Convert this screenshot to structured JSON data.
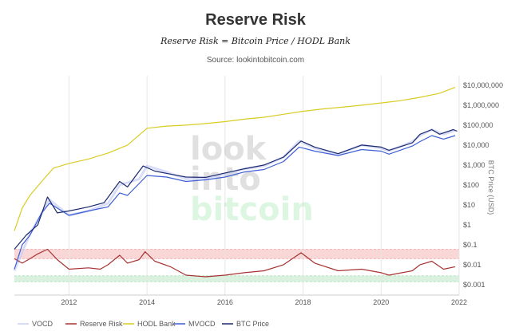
{
  "chart_data": {
    "type": "line",
    "title": "Reserve Risk",
    "subtitle": "Reserve Risk = Bitcoin Price / HODL Bank",
    "source": "Source: lookintobitcoin.com",
    "watermark": [
      "look",
      "into",
      "bitcoin"
    ],
    "ylabel": "BTC Price (USD)",
    "yscale": "log",
    "ylim": [
      0.0003,
      30000000
    ],
    "xlim": [
      2010.6,
      2022.0
    ],
    "x_ticks": [
      "2012",
      "2014",
      "2016",
      "2018",
      "2020",
      "2022"
    ],
    "y_ticks": [
      {
        "v": 10000000,
        "label": "$10,000,000"
      },
      {
        "v": 1000000,
        "label": "$1,000,000"
      },
      {
        "v": 100000,
        "label": "$100,000"
      },
      {
        "v": 10000,
        "label": "$10,000"
      },
      {
        "v": 1000,
        "label": "$1,000"
      },
      {
        "v": 100,
        "label": "$100"
      },
      {
        "v": 10,
        "label": "$10"
      },
      {
        "v": 1,
        "label": "$1"
      },
      {
        "v": 0.1,
        "label": "$0.1"
      },
      {
        "v": 0.01,
        "label": "$0.01"
      },
      {
        "v": 0.001,
        "label": "$0.001"
      }
    ],
    "bands": [
      {
        "from": 0.02,
        "to": 0.06,
        "color": "#f4b6b6"
      },
      {
        "from": 0.0014,
        "to": 0.0028,
        "color": "#b9e6c3"
      }
    ],
    "series": [
      {
        "name": "VOCD",
        "color": "#c9cff5",
        "points": [
          [
            2010.6,
            0.005
          ],
          [
            2011.0,
            0.35
          ],
          [
            2011.5,
            18
          ],
          [
            2012.0,
            3
          ],
          [
            2012.5,
            5
          ],
          [
            2013.0,
            12
          ],
          [
            2013.3,
            100
          ],
          [
            2013.8,
            200
          ],
          [
            2014.0,
            900
          ],
          [
            2014.5,
            450
          ],
          [
            2015.0,
            200
          ],
          [
            2015.5,
            220
          ],
          [
            2016.0,
            350
          ],
          [
            2016.5,
            650
          ],
          [
            2017.0,
            900
          ],
          [
            2017.5,
            2500
          ],
          [
            2017.9,
            16000
          ],
          [
            2018.3,
            7000
          ],
          [
            2018.9,
            3500
          ],
          [
            2019.5,
            10000
          ],
          [
            2020.0,
            7000
          ],
          [
            2020.2,
            5000
          ],
          [
            2020.8,
            15000
          ],
          [
            2021.0,
            30000
          ],
          [
            2021.3,
            60000
          ],
          [
            2021.6,
            35000
          ],
          [
            2021.9,
            55000
          ]
        ]
      },
      {
        "name": "Reserve Risk",
        "color": "#a83232",
        "points": [
          [
            2010.6,
            0.02
          ],
          [
            2010.8,
            0.012
          ],
          [
            2011.0,
            0.02
          ],
          [
            2011.2,
            0.035
          ],
          [
            2011.45,
            0.06
          ],
          [
            2011.7,
            0.018
          ],
          [
            2012.0,
            0.006
          ],
          [
            2012.5,
            0.007
          ],
          [
            2012.8,
            0.006
          ],
          [
            2013.0,
            0.01
          ],
          [
            2013.3,
            0.03
          ],
          [
            2013.5,
            0.012
          ],
          [
            2013.8,
            0.018
          ],
          [
            2013.95,
            0.045
          ],
          [
            2014.2,
            0.015
          ],
          [
            2014.6,
            0.008
          ],
          [
            2015.0,
            0.003
          ],
          [
            2015.5,
            0.0025
          ],
          [
            2016.0,
            0.003
          ],
          [
            2016.5,
            0.004
          ],
          [
            2017.0,
            0.005
          ],
          [
            2017.5,
            0.01
          ],
          [
            2017.95,
            0.04
          ],
          [
            2018.3,
            0.012
          ],
          [
            2018.9,
            0.005
          ],
          [
            2019.5,
            0.006
          ],
          [
            2020.0,
            0.004
          ],
          [
            2020.2,
            0.003
          ],
          [
            2020.8,
            0.005
          ],
          [
            2021.0,
            0.01
          ],
          [
            2021.3,
            0.015
          ],
          [
            2021.6,
            0.006
          ],
          [
            2021.9,
            0.008
          ]
        ]
      },
      {
        "name": "HODL Bank",
        "color": "#d9cc24",
        "points": [
          [
            2010.6,
            0.5
          ],
          [
            2010.8,
            7
          ],
          [
            2011.0,
            30
          ],
          [
            2011.3,
            150
          ],
          [
            2011.6,
            700
          ],
          [
            2012.0,
            1200
          ],
          [
            2012.5,
            2000
          ],
          [
            2013.0,
            4000
          ],
          [
            2013.5,
            10000
          ],
          [
            2014.0,
            70000
          ],
          [
            2014.5,
            90000
          ],
          [
            2015.0,
            100000
          ],
          [
            2015.5,
            120000
          ],
          [
            2016.0,
            150000
          ],
          [
            2016.5,
            200000
          ],
          [
            2017.0,
            250000
          ],
          [
            2017.5,
            350000
          ],
          [
            2018.0,
            500000
          ],
          [
            2018.5,
            650000
          ],
          [
            2019.0,
            800000
          ],
          [
            2019.5,
            1000000
          ],
          [
            2020.0,
            1300000
          ],
          [
            2020.5,
            1700000
          ],
          [
            2021.0,
            2500000
          ],
          [
            2021.5,
            4000000
          ],
          [
            2021.9,
            8000000
          ]
        ]
      },
      {
        "name": "MVOCD",
        "color": "#3d5ed6",
        "points": [
          [
            2010.6,
            0.006
          ],
          [
            2010.8,
            0.1
          ],
          [
            2011.0,
            0.3
          ],
          [
            2011.3,
            4
          ],
          [
            2011.5,
            12
          ],
          [
            2012.0,
            3
          ],
          [
            2012.5,
            5
          ],
          [
            2013.0,
            8
          ],
          [
            2013.3,
            40
          ],
          [
            2013.5,
            30
          ],
          [
            2014.0,
            300
          ],
          [
            2014.5,
            250
          ],
          [
            2015.0,
            150
          ],
          [
            2015.5,
            180
          ],
          [
            2016.0,
            250
          ],
          [
            2016.5,
            450
          ],
          [
            2017.0,
            600
          ],
          [
            2017.5,
            1500
          ],
          [
            2017.9,
            8000
          ],
          [
            2018.3,
            5000
          ],
          [
            2018.9,
            3000
          ],
          [
            2019.5,
            6000
          ],
          [
            2020.0,
            5000
          ],
          [
            2020.2,
            3500
          ],
          [
            2020.8,
            9000
          ],
          [
            2021.0,
            15000
          ],
          [
            2021.3,
            30000
          ],
          [
            2021.6,
            20000
          ],
          [
            2021.9,
            30000
          ]
        ]
      },
      {
        "name": "BTC Price",
        "color": "#1a2a6c",
        "points": [
          [
            2010.6,
            0.06
          ],
          [
            2010.9,
            0.3
          ],
          [
            2011.2,
            1
          ],
          [
            2011.45,
            25
          ],
          [
            2011.7,
            4
          ],
          [
            2012.0,
            5
          ],
          [
            2012.5,
            8
          ],
          [
            2012.9,
            13
          ],
          [
            2013.3,
            150
          ],
          [
            2013.5,
            80
          ],
          [
            2013.9,
            900
          ],
          [
            2014.2,
            500
          ],
          [
            2014.6,
            350
          ],
          [
            2015.0,
            250
          ],
          [
            2015.5,
            240
          ],
          [
            2016.0,
            400
          ],
          [
            2016.5,
            650
          ],
          [
            2017.0,
            1000
          ],
          [
            2017.5,
            2500
          ],
          [
            2017.95,
            16000
          ],
          [
            2018.3,
            8000
          ],
          [
            2018.9,
            3700
          ],
          [
            2019.5,
            10000
          ],
          [
            2020.0,
            8000
          ],
          [
            2020.2,
            5500
          ],
          [
            2020.8,
            13000
          ],
          [
            2021.0,
            35000
          ],
          [
            2021.3,
            60000
          ],
          [
            2021.5,
            35000
          ],
          [
            2021.85,
            60000
          ],
          [
            2021.95,
            50000
          ]
        ]
      }
    ],
    "legend_position": "bottom",
    "grid": "vertical"
  }
}
